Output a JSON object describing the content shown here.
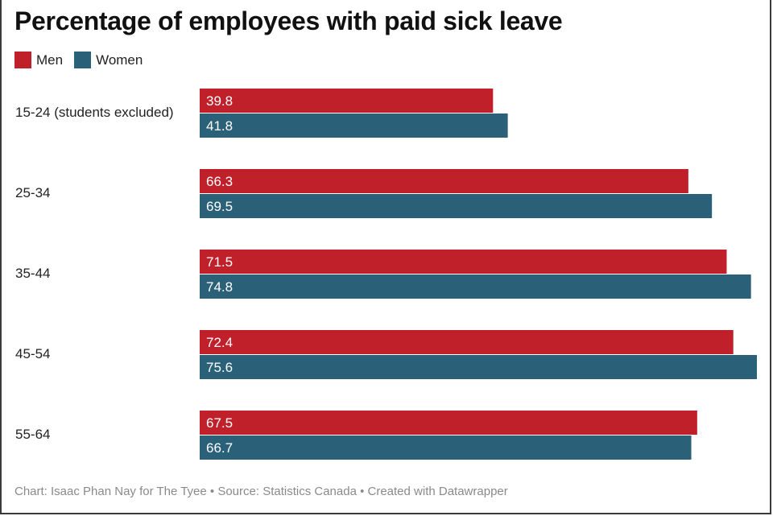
{
  "chart_data": {
    "type": "bar",
    "orientation": "horizontal",
    "title": "Percentage of employees with paid sick leave",
    "categories": [
      "15-24 (students excluded)",
      "25-34",
      "35-44",
      "45-54",
      "55-64"
    ],
    "series": [
      {
        "name": "Men",
        "color": "#c0202a",
        "values": [
          39.8,
          66.3,
          71.5,
          72.4,
          67.5
        ]
      },
      {
        "name": "Women",
        "color": "#2a6179",
        "values": [
          41.8,
          69.5,
          74.8,
          75.6,
          66.7
        ]
      }
    ],
    "xlim": [
      0,
      75.6
    ],
    "xlabel": "",
    "ylabel": "",
    "legend_position": "top-left",
    "source": "Chart: Isaac Phan Nay for The Tyee • Source: Statistics Canada • Created with Datawrapper"
  }
}
